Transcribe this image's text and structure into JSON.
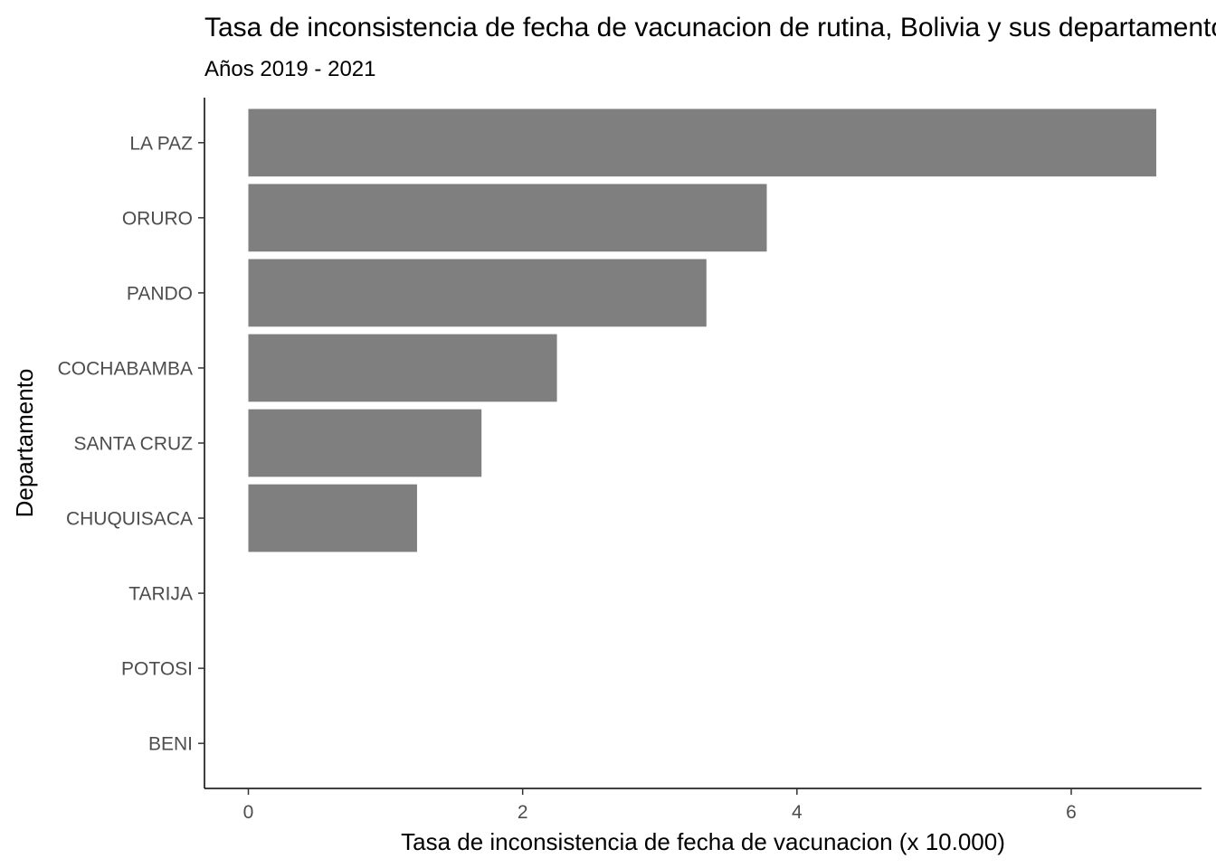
{
  "chart_data": {
    "type": "bar",
    "orientation": "horizontal",
    "title": "Tasa de inconsistencia de fecha de vacunacion de rutina, Bolivia y sus departamentos",
    "subtitle": "Años 2019 - 2021",
    "xlabel": "Tasa de inconsistencia de fecha de vacunacion (x 10.000)",
    "ylabel": "Departamento",
    "categories": [
      "LA PAZ",
      "ORURO",
      "PANDO",
      "COCHABAMBA",
      "SANTA CRUZ",
      "CHUQUISACA",
      "TARIJA",
      "POTOSI",
      "BENI"
    ],
    "values": [
      6.62,
      3.78,
      3.34,
      2.25,
      1.7,
      1.23,
      0,
      0,
      0
    ],
    "xticks": [
      0,
      2,
      4,
      6
    ],
    "xlim": [
      -0.32,
      6.95
    ],
    "bar_color": "#7f7f7f",
    "grid": false,
    "legend": "none"
  }
}
